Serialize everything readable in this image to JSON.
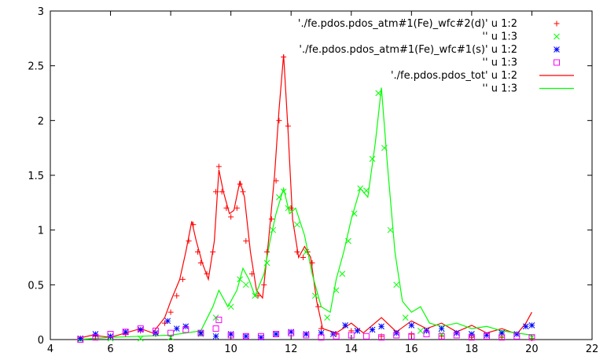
{
  "chart_data": {
    "type": "line",
    "xlim": [
      4,
      22
    ],
    "ylim": [
      0,
      3
    ],
    "xticks": [
      "4",
      "6",
      "8",
      "10",
      "12",
      "14",
      "16",
      "18",
      "20",
      "22"
    ],
    "yticks": [
      "0",
      "0.5",
      "1",
      "1.5",
      "2",
      "2.5",
      "3"
    ],
    "grid": false,
    "legend_position": "top-right",
    "series": [
      {
        "name": "'./fe.pdos.pdos_atm#1(Fe)_wfc#2(d)' u 1:2",
        "style": "points",
        "marker": "plus",
        "color": "#ff0000",
        "points": [
          [
            5.0,
            0.01
          ],
          [
            5.5,
            0.03
          ],
          [
            6.0,
            0.02
          ],
          [
            6.5,
            0.05
          ],
          [
            7.0,
            0.08
          ],
          [
            7.5,
            0.05
          ],
          [
            7.8,
            0.15
          ],
          [
            8.0,
            0.25
          ],
          [
            8.2,
            0.4
          ],
          [
            8.4,
            0.55
          ],
          [
            8.6,
            0.9
          ],
          [
            8.75,
            1.05
          ],
          [
            8.9,
            0.8
          ],
          [
            9.0,
            0.7
          ],
          [
            9.2,
            0.6
          ],
          [
            9.4,
            0.8
          ],
          [
            9.5,
            1.35
          ],
          [
            9.6,
            1.58
          ],
          [
            9.7,
            1.35
          ],
          [
            9.85,
            1.2
          ],
          [
            10.0,
            1.12
          ],
          [
            10.2,
            1.2
          ],
          [
            10.3,
            1.42
          ],
          [
            10.4,
            1.35
          ],
          [
            10.5,
            0.9
          ],
          [
            10.7,
            0.6
          ],
          [
            10.9,
            0.4
          ],
          [
            11.1,
            0.5
          ],
          [
            11.2,
            0.8
          ],
          [
            11.35,
            1.1
          ],
          [
            11.5,
            1.45
          ],
          [
            11.6,
            2.0
          ],
          [
            11.75,
            2.58
          ],
          [
            11.9,
            1.95
          ],
          [
            12.0,
            1.2
          ],
          [
            12.2,
            0.8
          ],
          [
            12.4,
            0.75
          ],
          [
            12.55,
            0.8
          ],
          [
            12.7,
            0.7
          ],
          [
            12.9,
            0.3
          ],
          [
            13.0,
            0.1
          ],
          [
            13.5,
            0.05
          ],
          [
            14.0,
            0.08
          ],
          [
            15.0,
            0.03
          ],
          [
            16.0,
            0.05
          ],
          [
            17.0,
            0.03
          ],
          [
            18.0,
            0.02
          ],
          [
            19.0,
            0.02
          ],
          [
            20.0,
            0.01
          ]
        ]
      },
      {
        "name": "'' u 1:3",
        "style": "points",
        "marker": "cross",
        "color": "#00ff00",
        "points": [
          [
            5.0,
            0.0
          ],
          [
            6.0,
            0.01
          ],
          [
            7.0,
            0.01
          ],
          [
            8.0,
            0.02
          ],
          [
            9.0,
            0.05
          ],
          [
            9.5,
            0.2
          ],
          [
            10.0,
            0.3
          ],
          [
            10.3,
            0.55
          ],
          [
            10.5,
            0.5
          ],
          [
            10.8,
            0.4
          ],
          [
            11.2,
            0.7
          ],
          [
            11.4,
            1.0
          ],
          [
            11.6,
            1.3
          ],
          [
            11.75,
            1.35
          ],
          [
            11.9,
            1.2
          ],
          [
            12.2,
            1.05
          ],
          [
            12.5,
            0.8
          ],
          [
            12.8,
            0.4
          ],
          [
            13.2,
            0.2
          ],
          [
            13.5,
            0.45
          ],
          [
            13.7,
            0.6
          ],
          [
            13.9,
            0.9
          ],
          [
            14.1,
            1.15
          ],
          [
            14.3,
            1.38
          ],
          [
            14.5,
            1.36
          ],
          [
            14.7,
            1.65
          ],
          [
            14.9,
            2.25
          ],
          [
            15.1,
            1.75
          ],
          [
            15.3,
            1.0
          ],
          [
            15.5,
            0.5
          ],
          [
            15.8,
            0.2
          ],
          [
            16.3,
            0.08
          ],
          [
            17.0,
            0.05
          ],
          [
            18.0,
            0.05
          ],
          [
            19.0,
            0.04
          ],
          [
            20.0,
            0.02
          ]
        ]
      },
      {
        "name": "'./fe.pdos.pdos_atm#1(Fe)_wfc#1(s)' u 1:2",
        "style": "points",
        "marker": "star",
        "color": "#0000ff",
        "points": [
          [
            5.0,
            0.01
          ],
          [
            5.5,
            0.05
          ],
          [
            6.0,
            0.03
          ],
          [
            6.5,
            0.07
          ],
          [
            7.0,
            0.09
          ],
          [
            7.5,
            0.06
          ],
          [
            7.9,
            0.17
          ],
          [
            8.2,
            0.1
          ],
          [
            8.5,
            0.12
          ],
          [
            9.0,
            0.06
          ],
          [
            9.5,
            0.03
          ],
          [
            10.0,
            0.05
          ],
          [
            10.5,
            0.03
          ],
          [
            11.0,
            0.02
          ],
          [
            11.5,
            0.05
          ],
          [
            12.0,
            0.07
          ],
          [
            12.5,
            0.05
          ],
          [
            13.0,
            0.06
          ],
          [
            13.4,
            0.05
          ],
          [
            13.8,
            0.13
          ],
          [
            14.2,
            0.08
          ],
          [
            14.7,
            0.09
          ],
          [
            15.0,
            0.12
          ],
          [
            15.5,
            0.06
          ],
          [
            16.0,
            0.13
          ],
          [
            16.5,
            0.08
          ],
          [
            17.0,
            0.1
          ],
          [
            17.5,
            0.06
          ],
          [
            18.0,
            0.05
          ],
          [
            18.5,
            0.04
          ],
          [
            19.0,
            0.06
          ],
          [
            19.5,
            0.05
          ],
          [
            19.8,
            0.12
          ],
          [
            20.0,
            0.13
          ]
        ]
      },
      {
        "name": "'' u 1:3",
        "style": "points",
        "marker": "square",
        "color": "#ff00ff",
        "points": [
          [
            5.0,
            0.0
          ],
          [
            5.5,
            0.02
          ],
          [
            6.0,
            0.05
          ],
          [
            6.5,
            0.07
          ],
          [
            7.0,
            0.1
          ],
          [
            7.5,
            0.08
          ],
          [
            8.0,
            0.06
          ],
          [
            8.5,
            0.09
          ],
          [
            9.0,
            0.06
          ],
          [
            9.5,
            0.1
          ],
          [
            9.6,
            0.18
          ],
          [
            10.0,
            0.04
          ],
          [
            10.5,
            0.03
          ],
          [
            11.0,
            0.03
          ],
          [
            11.5,
            0.05
          ],
          [
            12.0,
            0.06
          ],
          [
            12.5,
            0.04
          ],
          [
            13.0,
            0.02
          ],
          [
            13.5,
            0.03
          ],
          [
            14.0,
            0.04
          ],
          [
            14.5,
            0.03
          ],
          [
            15.0,
            0.02
          ],
          [
            15.5,
            0.04
          ],
          [
            16.0,
            0.03
          ],
          [
            16.5,
            0.05
          ],
          [
            17.0,
            0.03
          ],
          [
            17.5,
            0.04
          ],
          [
            18.0,
            0.02
          ],
          [
            18.5,
            0.03
          ],
          [
            19.0,
            0.02
          ],
          [
            19.5,
            0.03
          ],
          [
            20.0,
            0.02
          ]
        ]
      },
      {
        "name": "'./fe.pdos.pdos_tot' u 1:2",
        "style": "line",
        "color": "#ff0000",
        "points": [
          [
            4.9,
            0.01
          ],
          [
            5.4,
            0.04
          ],
          [
            6.0,
            0.02
          ],
          [
            6.5,
            0.06
          ],
          [
            7.0,
            0.1
          ],
          [
            7.4,
            0.06
          ],
          [
            7.8,
            0.2
          ],
          [
            8.0,
            0.35
          ],
          [
            8.3,
            0.55
          ],
          [
            8.5,
            0.8
          ],
          [
            8.7,
            1.08
          ],
          [
            8.85,
            0.9
          ],
          [
            9.05,
            0.7
          ],
          [
            9.25,
            0.55
          ],
          [
            9.45,
            0.9
          ],
          [
            9.6,
            1.55
          ],
          [
            9.75,
            1.35
          ],
          [
            9.95,
            1.15
          ],
          [
            10.1,
            1.18
          ],
          [
            10.3,
            1.45
          ],
          [
            10.45,
            1.3
          ],
          [
            10.65,
            0.8
          ],
          [
            10.85,
            0.45
          ],
          [
            11.05,
            0.38
          ],
          [
            11.25,
            0.9
          ],
          [
            11.45,
            1.5
          ],
          [
            11.6,
            2.1
          ],
          [
            11.75,
            2.6
          ],
          [
            11.9,
            1.9
          ],
          [
            12.05,
            1.1
          ],
          [
            12.25,
            0.75
          ],
          [
            12.45,
            0.85
          ],
          [
            12.65,
            0.75
          ],
          [
            12.85,
            0.35
          ],
          [
            13.05,
            0.1
          ],
          [
            13.5,
            0.06
          ],
          [
            14.0,
            0.15
          ],
          [
            14.4,
            0.06
          ],
          [
            15.0,
            0.2
          ],
          [
            15.5,
            0.07
          ],
          [
            16.0,
            0.17
          ],
          [
            16.5,
            0.1
          ],
          [
            17.0,
            0.15
          ],
          [
            17.5,
            0.07
          ],
          [
            18.0,
            0.13
          ],
          [
            18.5,
            0.06
          ],
          [
            19.0,
            0.1
          ],
          [
            19.5,
            0.05
          ],
          [
            19.8,
            0.15
          ],
          [
            20.0,
            0.25
          ]
        ]
      },
      {
        "name": "'' u 1:3",
        "style": "line",
        "color": "#00ff00",
        "points": [
          [
            4.9,
            0.0
          ],
          [
            6.0,
            0.02
          ],
          [
            7.0,
            0.03
          ],
          [
            8.0,
            0.04
          ],
          [
            9.0,
            0.08
          ],
          [
            9.4,
            0.3
          ],
          [
            9.6,
            0.45
          ],
          [
            9.9,
            0.3
          ],
          [
            10.2,
            0.45
          ],
          [
            10.4,
            0.65
          ],
          [
            10.6,
            0.55
          ],
          [
            10.8,
            0.4
          ],
          [
            11.1,
            0.6
          ],
          [
            11.3,
            0.9
          ],
          [
            11.5,
            1.15
          ],
          [
            11.75,
            1.38
          ],
          [
            11.95,
            1.15
          ],
          [
            12.15,
            1.2
          ],
          [
            12.45,
            0.95
          ],
          [
            12.7,
            0.6
          ],
          [
            13.0,
            0.3
          ],
          [
            13.3,
            0.25
          ],
          [
            13.5,
            0.55
          ],
          [
            13.75,
            0.8
          ],
          [
            14.0,
            1.1
          ],
          [
            14.3,
            1.38
          ],
          [
            14.55,
            1.3
          ],
          [
            14.8,
            1.8
          ],
          [
            15.0,
            2.3
          ],
          [
            15.2,
            1.6
          ],
          [
            15.45,
            0.8
          ],
          [
            15.7,
            0.35
          ],
          [
            16.0,
            0.25
          ],
          [
            16.3,
            0.3
          ],
          [
            16.6,
            0.15
          ],
          [
            17.0,
            0.12
          ],
          [
            17.5,
            0.15
          ],
          [
            18.0,
            0.1
          ],
          [
            18.5,
            0.12
          ],
          [
            19.0,
            0.08
          ],
          [
            19.5,
            0.06
          ],
          [
            20.0,
            0.04
          ]
        ]
      }
    ]
  }
}
